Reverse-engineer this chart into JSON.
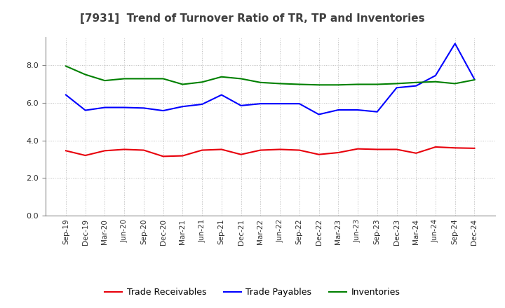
{
  "title": "[7931]  Trend of Turnover Ratio of TR, TP and Inventories",
  "labels": [
    "Sep-19",
    "Dec-19",
    "Mar-20",
    "Jun-20",
    "Sep-20",
    "Dec-20",
    "Mar-21",
    "Jun-21",
    "Sep-21",
    "Dec-21",
    "Mar-22",
    "Jun-22",
    "Sep-22",
    "Dec-22",
    "Mar-23",
    "Jun-23",
    "Sep-23",
    "Dec-23",
    "Mar-24",
    "Jun-24",
    "Sep-24",
    "Dec-24"
  ],
  "trade_receivables": [
    3.45,
    3.2,
    3.45,
    3.52,
    3.48,
    3.15,
    3.18,
    3.48,
    3.52,
    3.25,
    3.48,
    3.52,
    3.48,
    3.25,
    3.35,
    3.55,
    3.52,
    3.52,
    3.32,
    3.65,
    3.6,
    3.58
  ],
  "trade_payables": [
    6.42,
    5.6,
    5.75,
    5.75,
    5.72,
    5.58,
    5.8,
    5.92,
    6.42,
    5.85,
    5.95,
    5.95,
    5.95,
    5.38,
    5.62,
    5.62,
    5.52,
    6.8,
    6.9,
    7.45,
    9.15,
    7.25
  ],
  "inventories": [
    7.95,
    7.5,
    7.18,
    7.28,
    7.28,
    7.28,
    6.98,
    7.1,
    7.38,
    7.28,
    7.08,
    7.02,
    6.98,
    6.95,
    6.95,
    6.98,
    6.98,
    7.02,
    7.08,
    7.12,
    7.02,
    7.22
  ],
  "tr_color": "#e8000b",
  "tp_color": "#0000ff",
  "inv_color": "#008000",
  "background_color": "#ffffff",
  "ylim": [
    0.0,
    9.5
  ],
  "yticks": [
    0.0,
    2.0,
    4.0,
    6.0,
    8.0
  ],
  "legend_labels": [
    "Trade Receivables",
    "Trade Payables",
    "Inventories"
  ],
  "line_width": 1.5,
  "title_color": "#404040",
  "grid_color": "#bbbbbb"
}
